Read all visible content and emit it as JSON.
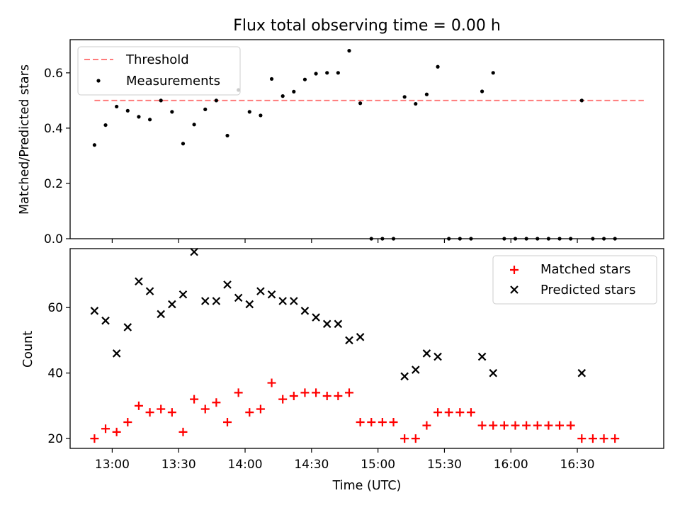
{
  "figure": {
    "title": "Flux total observing time = 0.00 h"
  },
  "chart_data": [
    {
      "type": "scatter",
      "panel": "top",
      "ylabel": "Matched/Predicted stars",
      "ylim": [
        0,
        0.72
      ],
      "yticks": [
        0.0,
        0.2,
        0.4,
        0.6
      ],
      "ytick_labels": [
        "0.0",
        "0.2",
        "0.4",
        "0.6"
      ],
      "x_tick_labels_shown": false,
      "legend_position": "top-left",
      "threshold": {
        "name": "Threshold",
        "y": 0.5,
        "x_start": "12:52",
        "x_end": "17:00",
        "color": "#ff7b7b"
      },
      "series": [
        {
          "name": "Measurements",
          "color": "#000000",
          "x": [
            "12:52",
            "12:57",
            "13:02",
            "13:07",
            "13:12",
            "13:17",
            "13:22",
            "13:27",
            "13:32",
            "13:37",
            "13:42",
            "13:47",
            "13:52",
            "13:57",
            "14:02",
            "14:07",
            "14:12",
            "14:17",
            "14:22",
            "14:27",
            "14:32",
            "14:37",
            "14:42",
            "14:47",
            "14:52",
            "14:57",
            "15:02",
            "15:07",
            "15:12",
            "15:17",
            "15:22",
            "15:27",
            "15:32",
            "15:37",
            "15:42",
            "15:47",
            "15:52",
            "15:57",
            "16:02",
            "16:07",
            "16:12",
            "16:17",
            "16:22",
            "16:27",
            "16:32",
            "16:37",
            "16:42",
            "16:47"
          ],
          "y": [
            0.339,
            0.411,
            0.478,
            0.463,
            0.441,
            0.431,
            0.5,
            0.459,
            0.344,
            0.413,
            0.468,
            0.5,
            0.373,
            0.538,
            0.459,
            0.446,
            0.578,
            0.516,
            0.532,
            0.576,
            0.597,
            0.6,
            0.6,
            0.68,
            0.49,
            0.0,
            0.0,
            0.0,
            0.513,
            0.488,
            0.522,
            0.622,
            0.0,
            0.0,
            0.0,
            0.533,
            0.6,
            0.0,
            0.0,
            0.0,
            0.0,
            0.0,
            0.0,
            0.0,
            0.5,
            0.0,
            0.0,
            0.0
          ]
        }
      ]
    },
    {
      "type": "scatter",
      "panel": "bottom",
      "xlabel": "Time (UTC)",
      "ylabel": "Count",
      "xlim": [
        "12:41",
        "17:09"
      ],
      "xticks": [
        "13:00",
        "13:30",
        "14:00",
        "14:30",
        "15:00",
        "15:30",
        "16:00",
        "16:30"
      ],
      "ylim": [
        17,
        78
      ],
      "yticks": [
        20,
        40,
        60
      ],
      "legend_position": "top-right",
      "series": [
        {
          "name": "Matched stars",
          "color": "#ff0000",
          "marker": "plus",
          "x": [
            "12:52",
            "12:57",
            "13:02",
            "13:07",
            "13:12",
            "13:17",
            "13:22",
            "13:27",
            "13:32",
            "13:37",
            "13:42",
            "13:47",
            "13:52",
            "13:57",
            "14:02",
            "14:07",
            "14:12",
            "14:17",
            "14:22",
            "14:27",
            "14:32",
            "14:37",
            "14:42",
            "14:47",
            "14:52",
            "14:57",
            "15:02",
            "15:07",
            "15:12",
            "15:17",
            "15:22",
            "15:27",
            "15:32",
            "15:37",
            "15:42",
            "15:47",
            "15:52",
            "15:57",
            "16:02",
            "16:07",
            "16:12",
            "16:17",
            "16:22",
            "16:27",
            "16:32",
            "16:37",
            "16:42",
            "16:47"
          ],
          "y": [
            20,
            23,
            22,
            25,
            30,
            28,
            29,
            28,
            22,
            32,
            29,
            31,
            25,
            34,
            28,
            29,
            37,
            32,
            33,
            34,
            34,
            33,
            33,
            34,
            25,
            25,
            25,
            25,
            20,
            20,
            24,
            28,
            28,
            28,
            28,
            24,
            24,
            24,
            24,
            24,
            24,
            24,
            24,
            24,
            20,
            20,
            20,
            20
          ]
        },
        {
          "name": "Predicted stars",
          "color": "#000000",
          "marker": "x",
          "x": [
            "12:52",
            "12:57",
            "13:02",
            "13:07",
            "13:12",
            "13:17",
            "13:22",
            "13:27",
            "13:32",
            "13:37",
            "13:42",
            "13:47",
            "13:52",
            "13:57",
            "14:02",
            "14:07",
            "14:12",
            "14:17",
            "14:22",
            "14:27",
            "14:32",
            "14:37",
            "14:42",
            "14:47",
            "14:52",
            "15:12",
            "15:17",
            "15:22",
            "15:27",
            "15:47",
            "15:52",
            "16:32"
          ],
          "y": [
            59,
            56,
            46,
            54,
            68,
            65,
            58,
            61,
            64,
            77,
            62,
            62,
            67,
            63,
            61,
            65,
            64,
            62,
            62,
            59,
            57,
            55,
            55,
            50,
            51,
            39,
            41,
            46,
            45,
            45,
            40,
            40
          ]
        }
      ]
    }
  ]
}
